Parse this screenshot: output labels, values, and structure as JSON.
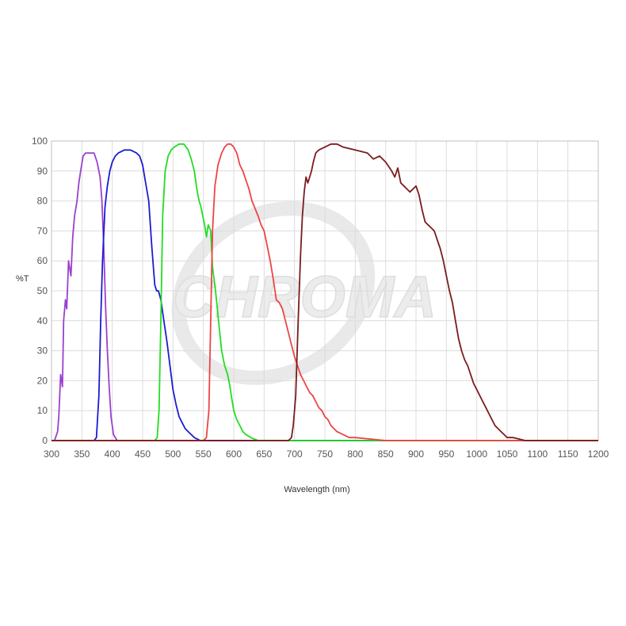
{
  "watermark": {
    "text": "CHROMA"
  },
  "chart_data": {
    "type": "line",
    "title": "",
    "xlabel": "Wavelength (nm)",
    "ylabel": "%T",
    "xlim": [
      300,
      1200
    ],
    "ylim": [
      0,
      100
    ],
    "xticks": [
      300,
      350,
      400,
      450,
      500,
      550,
      600,
      650,
      700,
      750,
      800,
      850,
      900,
      950,
      1000,
      1050,
      1100,
      1150,
      1200
    ],
    "yticks": [
      0,
      10,
      20,
      30,
      40,
      50,
      60,
      70,
      80,
      90,
      100
    ],
    "grid": true,
    "legend": "none",
    "series": [
      {
        "color": "#9b3fcf",
        "points": [
          [
            300,
            0
          ],
          [
            305,
            0
          ],
          [
            310,
            3
          ],
          [
            312,
            8
          ],
          [
            315,
            22
          ],
          [
            318,
            18
          ],
          [
            320,
            40
          ],
          [
            323,
            47
          ],
          [
            325,
            44
          ],
          [
            328,
            60
          ],
          [
            332,
            55
          ],
          [
            335,
            68
          ],
          [
            338,
            75
          ],
          [
            342,
            80
          ],
          [
            345,
            86
          ],
          [
            348,
            90
          ],
          [
            352,
            95
          ],
          [
            356,
            96
          ],
          [
            360,
            96
          ],
          [
            365,
            96
          ],
          [
            370,
            96
          ],
          [
            375,
            93
          ],
          [
            380,
            88
          ],
          [
            383,
            80
          ],
          [
            386,
            65
          ],
          [
            389,
            45
          ],
          [
            392,
            30
          ],
          [
            395,
            18
          ],
          [
            398,
            8
          ],
          [
            402,
            2
          ],
          [
            408,
            0
          ],
          [
            420,
            0
          ],
          [
            1200,
            0
          ]
        ]
      },
      {
        "color": "#1c1cd0",
        "points": [
          [
            300,
            0
          ],
          [
            370,
            0
          ],
          [
            374,
            1
          ],
          [
            378,
            15
          ],
          [
            381,
            40
          ],
          [
            384,
            60
          ],
          [
            388,
            78
          ],
          [
            392,
            85
          ],
          [
            396,
            90
          ],
          [
            400,
            93
          ],
          [
            405,
            95
          ],
          [
            410,
            96
          ],
          [
            420,
            97
          ],
          [
            430,
            97
          ],
          [
            440,
            96
          ],
          [
            445,
            95
          ],
          [
            450,
            92
          ],
          [
            455,
            86
          ],
          [
            460,
            80
          ],
          [
            465,
            65
          ],
          [
            470,
            52
          ],
          [
            473,
            50
          ],
          [
            476,
            50
          ],
          [
            480,
            47
          ],
          [
            485,
            40
          ],
          [
            490,
            33
          ],
          [
            495,
            25
          ],
          [
            500,
            17
          ],
          [
            505,
            12
          ],
          [
            510,
            8
          ],
          [
            515,
            6
          ],
          [
            520,
            4
          ],
          [
            525,
            3
          ],
          [
            530,
            2
          ],
          [
            535,
            1
          ],
          [
            545,
            0
          ],
          [
            1200,
            0
          ]
        ]
      },
      {
        "color": "#22dd22",
        "points": [
          [
            300,
            0
          ],
          [
            470,
            0
          ],
          [
            474,
            1
          ],
          [
            477,
            10
          ],
          [
            480,
            40
          ],
          [
            483,
            75
          ],
          [
            487,
            90
          ],
          [
            492,
            95
          ],
          [
            497,
            97
          ],
          [
            502,
            98
          ],
          [
            510,
            99
          ],
          [
            518,
            99
          ],
          [
            525,
            97
          ],
          [
            530,
            94
          ],
          [
            535,
            90
          ],
          [
            540,
            83
          ],
          [
            543,
            80
          ],
          [
            546,
            78
          ],
          [
            549,
            75
          ],
          [
            552,
            72
          ],
          [
            555,
            68
          ],
          [
            558,
            72
          ],
          [
            562,
            70
          ],
          [
            565,
            58
          ],
          [
            570,
            50
          ],
          [
            575,
            40
          ],
          [
            580,
            30
          ],
          [
            585,
            25
          ],
          [
            590,
            22
          ],
          [
            593,
            19
          ],
          [
            596,
            15
          ],
          [
            600,
            10
          ],
          [
            605,
            7
          ],
          [
            610,
            5
          ],
          [
            615,
            3
          ],
          [
            620,
            2
          ],
          [
            628,
            1
          ],
          [
            640,
            0
          ],
          [
            1200,
            0
          ]
        ]
      },
      {
        "color": "#ee4444",
        "points": [
          [
            300,
            0
          ],
          [
            550,
            0
          ],
          [
            555,
            1
          ],
          [
            559,
            10
          ],
          [
            562,
            40
          ],
          [
            565,
            70
          ],
          [
            569,
            85
          ],
          [
            574,
            92
          ],
          [
            580,
            96
          ],
          [
            585,
            98
          ],
          [
            590,
            99
          ],
          [
            595,
            99
          ],
          [
            600,
            98
          ],
          [
            605,
            96
          ],
          [
            610,
            92
          ],
          [
            615,
            90
          ],
          [
            620,
            87
          ],
          [
            625,
            84
          ],
          [
            630,
            80
          ],
          [
            640,
            75
          ],
          [
            645,
            72
          ],
          [
            650,
            70
          ],
          [
            655,
            65
          ],
          [
            660,
            60
          ],
          [
            665,
            54
          ],
          [
            670,
            47
          ],
          [
            675,
            46
          ],
          [
            680,
            44
          ],
          [
            685,
            40
          ],
          [
            690,
            36
          ],
          [
            695,
            32
          ],
          [
            700,
            28
          ],
          [
            705,
            25
          ],
          [
            710,
            22
          ],
          [
            715,
            20
          ],
          [
            720,
            18
          ],
          [
            725,
            16
          ],
          [
            730,
            15
          ],
          [
            735,
            13
          ],
          [
            740,
            11
          ],
          [
            745,
            10
          ],
          [
            750,
            8
          ],
          [
            755,
            7
          ],
          [
            760,
            5
          ],
          [
            765,
            4
          ],
          [
            770,
            3
          ],
          [
            780,
            2
          ],
          [
            790,
            1
          ],
          [
            800,
            1
          ],
          [
            850,
            0
          ],
          [
            1200,
            0
          ]
        ]
      },
      {
        "color": "#7a1c1c",
        "points": [
          [
            300,
            0
          ],
          [
            690,
            0
          ],
          [
            695,
            1
          ],
          [
            698,
            5
          ],
          [
            702,
            15
          ],
          [
            706,
            40
          ],
          [
            710,
            62
          ],
          [
            713,
            75
          ],
          [
            716,
            83
          ],
          [
            719,
            88
          ],
          [
            722,
            86
          ],
          [
            725,
            88
          ],
          [
            728,
            90
          ],
          [
            731,
            93
          ],
          [
            735,
            96
          ],
          [
            740,
            97
          ],
          [
            750,
            98
          ],
          [
            760,
            99
          ],
          [
            770,
            99
          ],
          [
            780,
            98
          ],
          [
            800,
            97
          ],
          [
            820,
            96
          ],
          [
            830,
            94
          ],
          [
            840,
            95
          ],
          [
            850,
            93
          ],
          [
            860,
            90
          ],
          [
            865,
            88
          ],
          [
            870,
            91
          ],
          [
            875,
            86
          ],
          [
            880,
            85
          ],
          [
            885,
            84
          ],
          [
            890,
            83
          ],
          [
            895,
            84
          ],
          [
            900,
            85
          ],
          [
            905,
            82
          ],
          [
            910,
            77
          ],
          [
            915,
            73
          ],
          [
            920,
            72
          ],
          [
            925,
            71
          ],
          [
            930,
            70
          ],
          [
            935,
            67
          ],
          [
            940,
            64
          ],
          [
            945,
            60
          ],
          [
            950,
            55
          ],
          [
            955,
            50
          ],
          [
            960,
            46
          ],
          [
            965,
            40
          ],
          [
            970,
            34
          ],
          [
            975,
            30
          ],
          [
            980,
            27
          ],
          [
            985,
            25
          ],
          [
            990,
            22
          ],
          [
            995,
            19
          ],
          [
            1000,
            17
          ],
          [
            1005,
            15
          ],
          [
            1010,
            13
          ],
          [
            1015,
            11
          ],
          [
            1020,
            9
          ],
          [
            1025,
            7
          ],
          [
            1030,
            5
          ],
          [
            1035,
            4
          ],
          [
            1040,
            3
          ],
          [
            1045,
            2
          ],
          [
            1050,
            1
          ],
          [
            1060,
            1
          ],
          [
            1080,
            0
          ],
          [
            1200,
            0
          ]
        ]
      }
    ]
  }
}
